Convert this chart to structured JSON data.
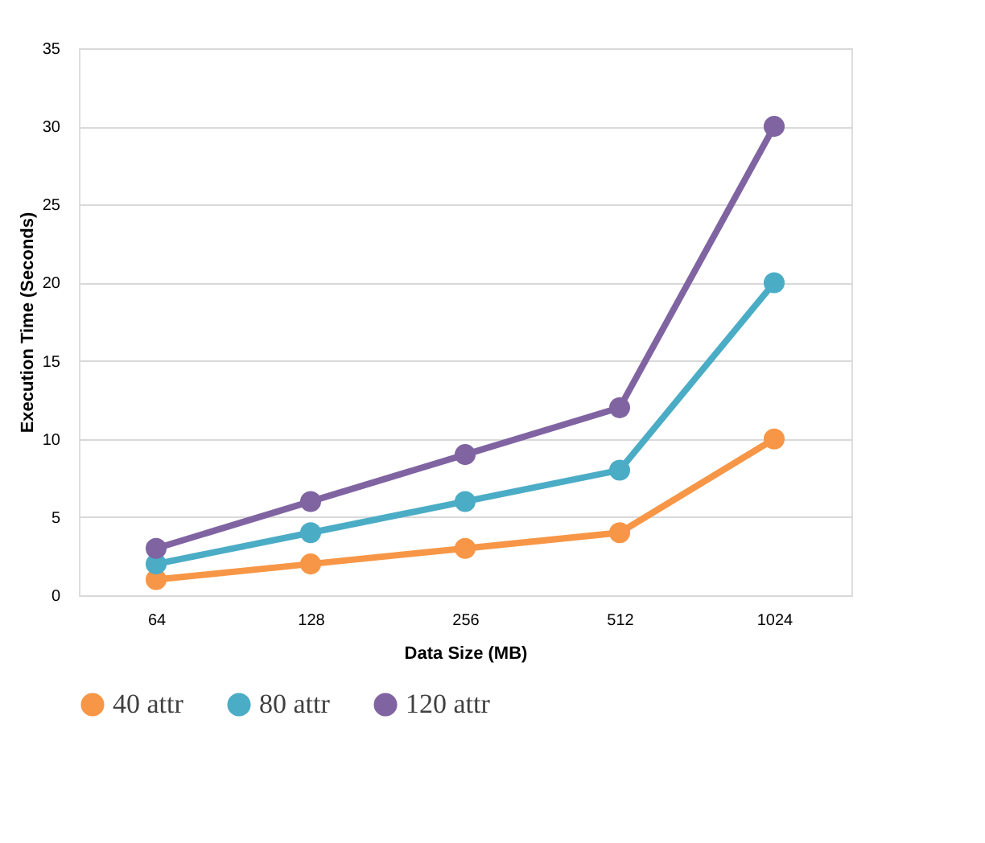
{
  "chart_data": {
    "type": "line",
    "xlabel": "Data Size (MB)",
    "ylabel": "Execution Time (Seconds)",
    "categories": [
      "64",
      "128",
      "256",
      "512",
      "1024"
    ],
    "series": [
      {
        "name": "40 attr",
        "color": "#f79646",
        "values": [
          1,
          2,
          3,
          4,
          10
        ]
      },
      {
        "name": "80 attr",
        "color": "#4bacc6",
        "values": [
          2,
          4,
          6,
          8,
          20
        ]
      },
      {
        "name": "120 attr",
        "color": "#8064a2",
        "values": [
          3,
          6,
          9,
          12,
          30
        ]
      }
    ],
    "ylim": [
      0,
      35
    ],
    "yticks": [
      0,
      5,
      10,
      15,
      20,
      25,
      30,
      35
    ],
    "grid": "y",
    "legend": "bottom",
    "marker": "circle",
    "line_style": "solid"
  }
}
